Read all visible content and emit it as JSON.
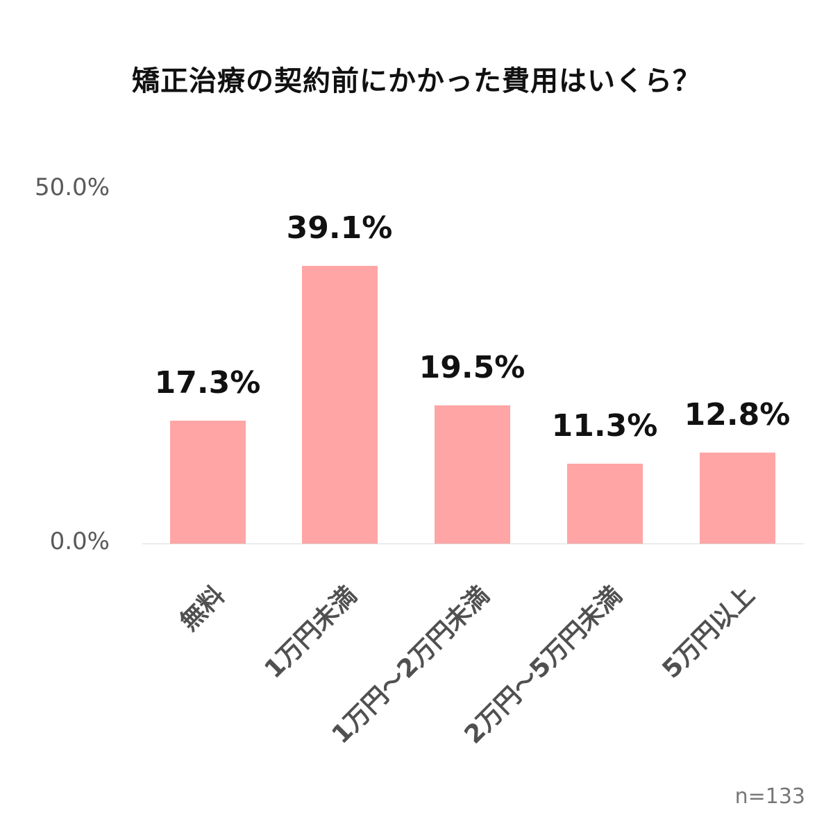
{
  "title": "矯正治療の契約前にかかった費用はいくら？",
  "y_ticks": [
    "50.0%",
    "0.0%"
  ],
  "sample_note": "n=133",
  "colors": {
    "bar": "#ffa5a5",
    "text": "#111111",
    "axis_text": "#595959"
  },
  "bars": [
    {
      "label": "無料",
      "value_label": "17.3%"
    },
    {
      "label": "1万円未満",
      "value_label": "39.1%"
    },
    {
      "label": "1万円～2万円未満",
      "value_label": "19.5%"
    },
    {
      "label": "2万円～5万円未満",
      "value_label": "11.3%"
    },
    {
      "label": "5万円以上",
      "value_label": "12.8%"
    }
  ],
  "chart_data": {
    "type": "bar",
    "title": "矯正治療の契約前にかかった費用はいくら？",
    "categories": [
      "無料",
      "1万円未満",
      "1万円～2万円未満",
      "2万円～5万円未満",
      "5万円以上"
    ],
    "values": [
      17.3,
      39.1,
      19.5,
      11.3,
      12.8
    ],
    "unit": "%",
    "xlabel": "",
    "ylabel": "",
    "ylim": [
      0,
      50
    ],
    "y_ticks": [
      0,
      50
    ],
    "grid": false,
    "legend": null,
    "annotations": [
      "n=133"
    ]
  }
}
